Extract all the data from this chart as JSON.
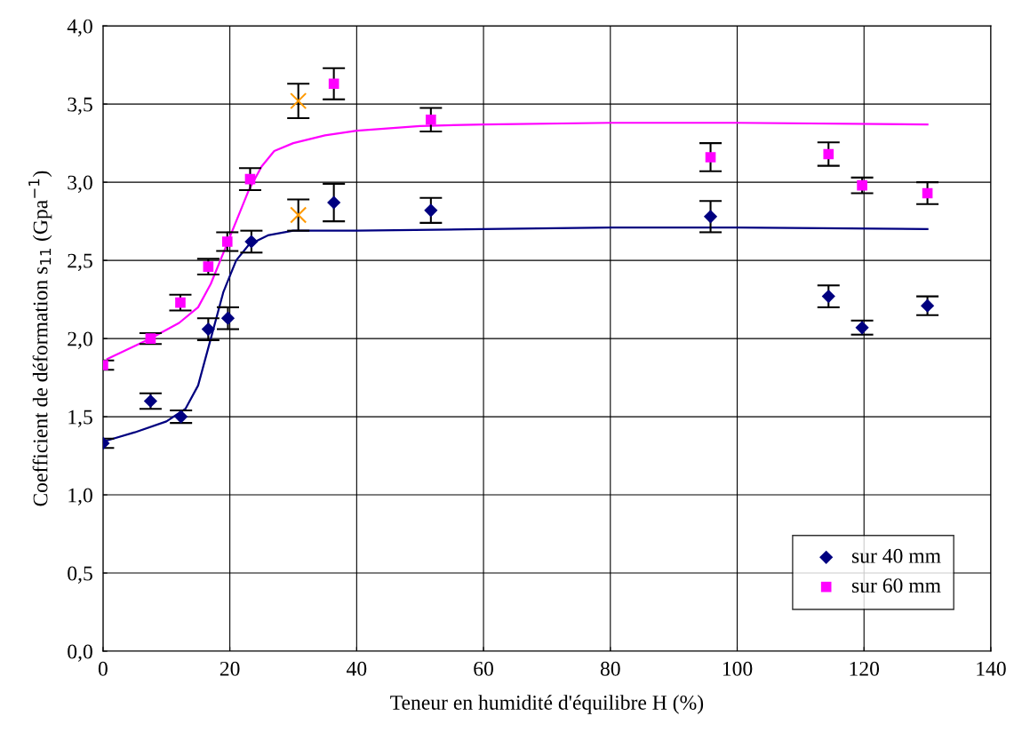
{
  "chart_data": {
    "type": "scatter",
    "xlabel": "Teneur en humidité d'équilibre H (%)",
    "ylabel": "Coefficient de déformation s$_{11}$ (Gpa$^{−1}$)",
    "xlim": [
      0,
      140
    ],
    "xticks": [
      0,
      20,
      40,
      60,
      80,
      100,
      120,
      140
    ],
    "ylim": [
      0,
      4
    ],
    "yticks": [
      {
        "value": 0,
        "label": "0,0"
      },
      {
        "value": 0.5,
        "label": "0,5"
      },
      {
        "value": 1,
        "label": "1,0"
      },
      {
        "value": 1.5,
        "label": "1,5"
      },
      {
        "value": 2,
        "label": "2,0"
      },
      {
        "value": 2.5,
        "label": "2,5"
      },
      {
        "value": 3,
        "label": "3,0"
      },
      {
        "value": 3.5,
        "label": "3,5"
      },
      {
        "value": 4,
        "label": "4,0"
      }
    ],
    "grid": true,
    "legend": "bottom right",
    "series": [
      {
        "name": "sur 40 mm",
        "marker": "diamond",
        "color": "#000080",
        "x": [
          0,
          7.5,
          12.3,
          16.6,
          19.7,
          23.4,
          36.4,
          51.7,
          95.8,
          114.4,
          119.7,
          130
        ],
        "values": [
          1.33,
          1.6,
          1.5,
          2.06,
          2.13,
          2.62,
          2.87,
          2.82,
          2.78,
          2.27,
          2.07,
          2.21
        ],
        "errors": [
          0.03,
          0.05,
          0.04,
          0.07,
          0.07,
          0.07,
          0.12,
          0.08,
          0.1,
          0.07,
          0.045,
          0.06
        ]
      },
      {
        "name": "sur 60 mm",
        "marker": "square",
        "color": "#ff00ff",
        "x": [
          0,
          7.5,
          12.2,
          16.6,
          19.6,
          23.2,
          36.4,
          51.7,
          95.8,
          114.4,
          119.7,
          130
        ],
        "values": [
          1.83,
          2.0,
          2.23,
          2.46,
          2.62,
          3.02,
          3.63,
          3.4,
          3.16,
          3.18,
          2.98,
          2.93
        ],
        "errors": [
          0.03,
          0.035,
          0.05,
          0.05,
          0.06,
          0.07,
          0.1,
          0.075,
          0.09,
          0.075,
          0.05,
          0.07
        ]
      },
      {
        "marker": "cross",
        "color": "#ff9900",
        "x": [
          30.8,
          30.8
        ],
        "values": [
          2.79,
          3.52
        ],
        "errors": [
          0.1,
          0.11
        ]
      },
      {
        "type": "line",
        "color": "#000080",
        "x": [
          0,
          5,
          10,
          13,
          15,
          17,
          19,
          21,
          23,
          26,
          30,
          40,
          60,
          80,
          100,
          130
        ],
        "values": [
          1.34,
          1.4,
          1.47,
          1.55,
          1.7,
          2.0,
          2.3,
          2.5,
          2.6,
          2.66,
          2.69,
          2.69,
          2.7,
          2.71,
          2.71,
          2.7
        ]
      },
      {
        "type": "line",
        "color": "#ff00ff",
        "x": [
          0.7,
          7.5,
          12,
          15,
          17,
          19,
          21,
          23,
          25,
          27,
          30,
          35,
          40,
          50,
          60,
          80,
          100,
          130
        ],
        "values": [
          1.87,
          2.0,
          2.1,
          2.2,
          2.35,
          2.55,
          2.75,
          2.95,
          3.1,
          3.2,
          3.25,
          3.3,
          3.33,
          3.36,
          3.37,
          3.38,
          3.38,
          3.37
        ]
      }
    ]
  }
}
